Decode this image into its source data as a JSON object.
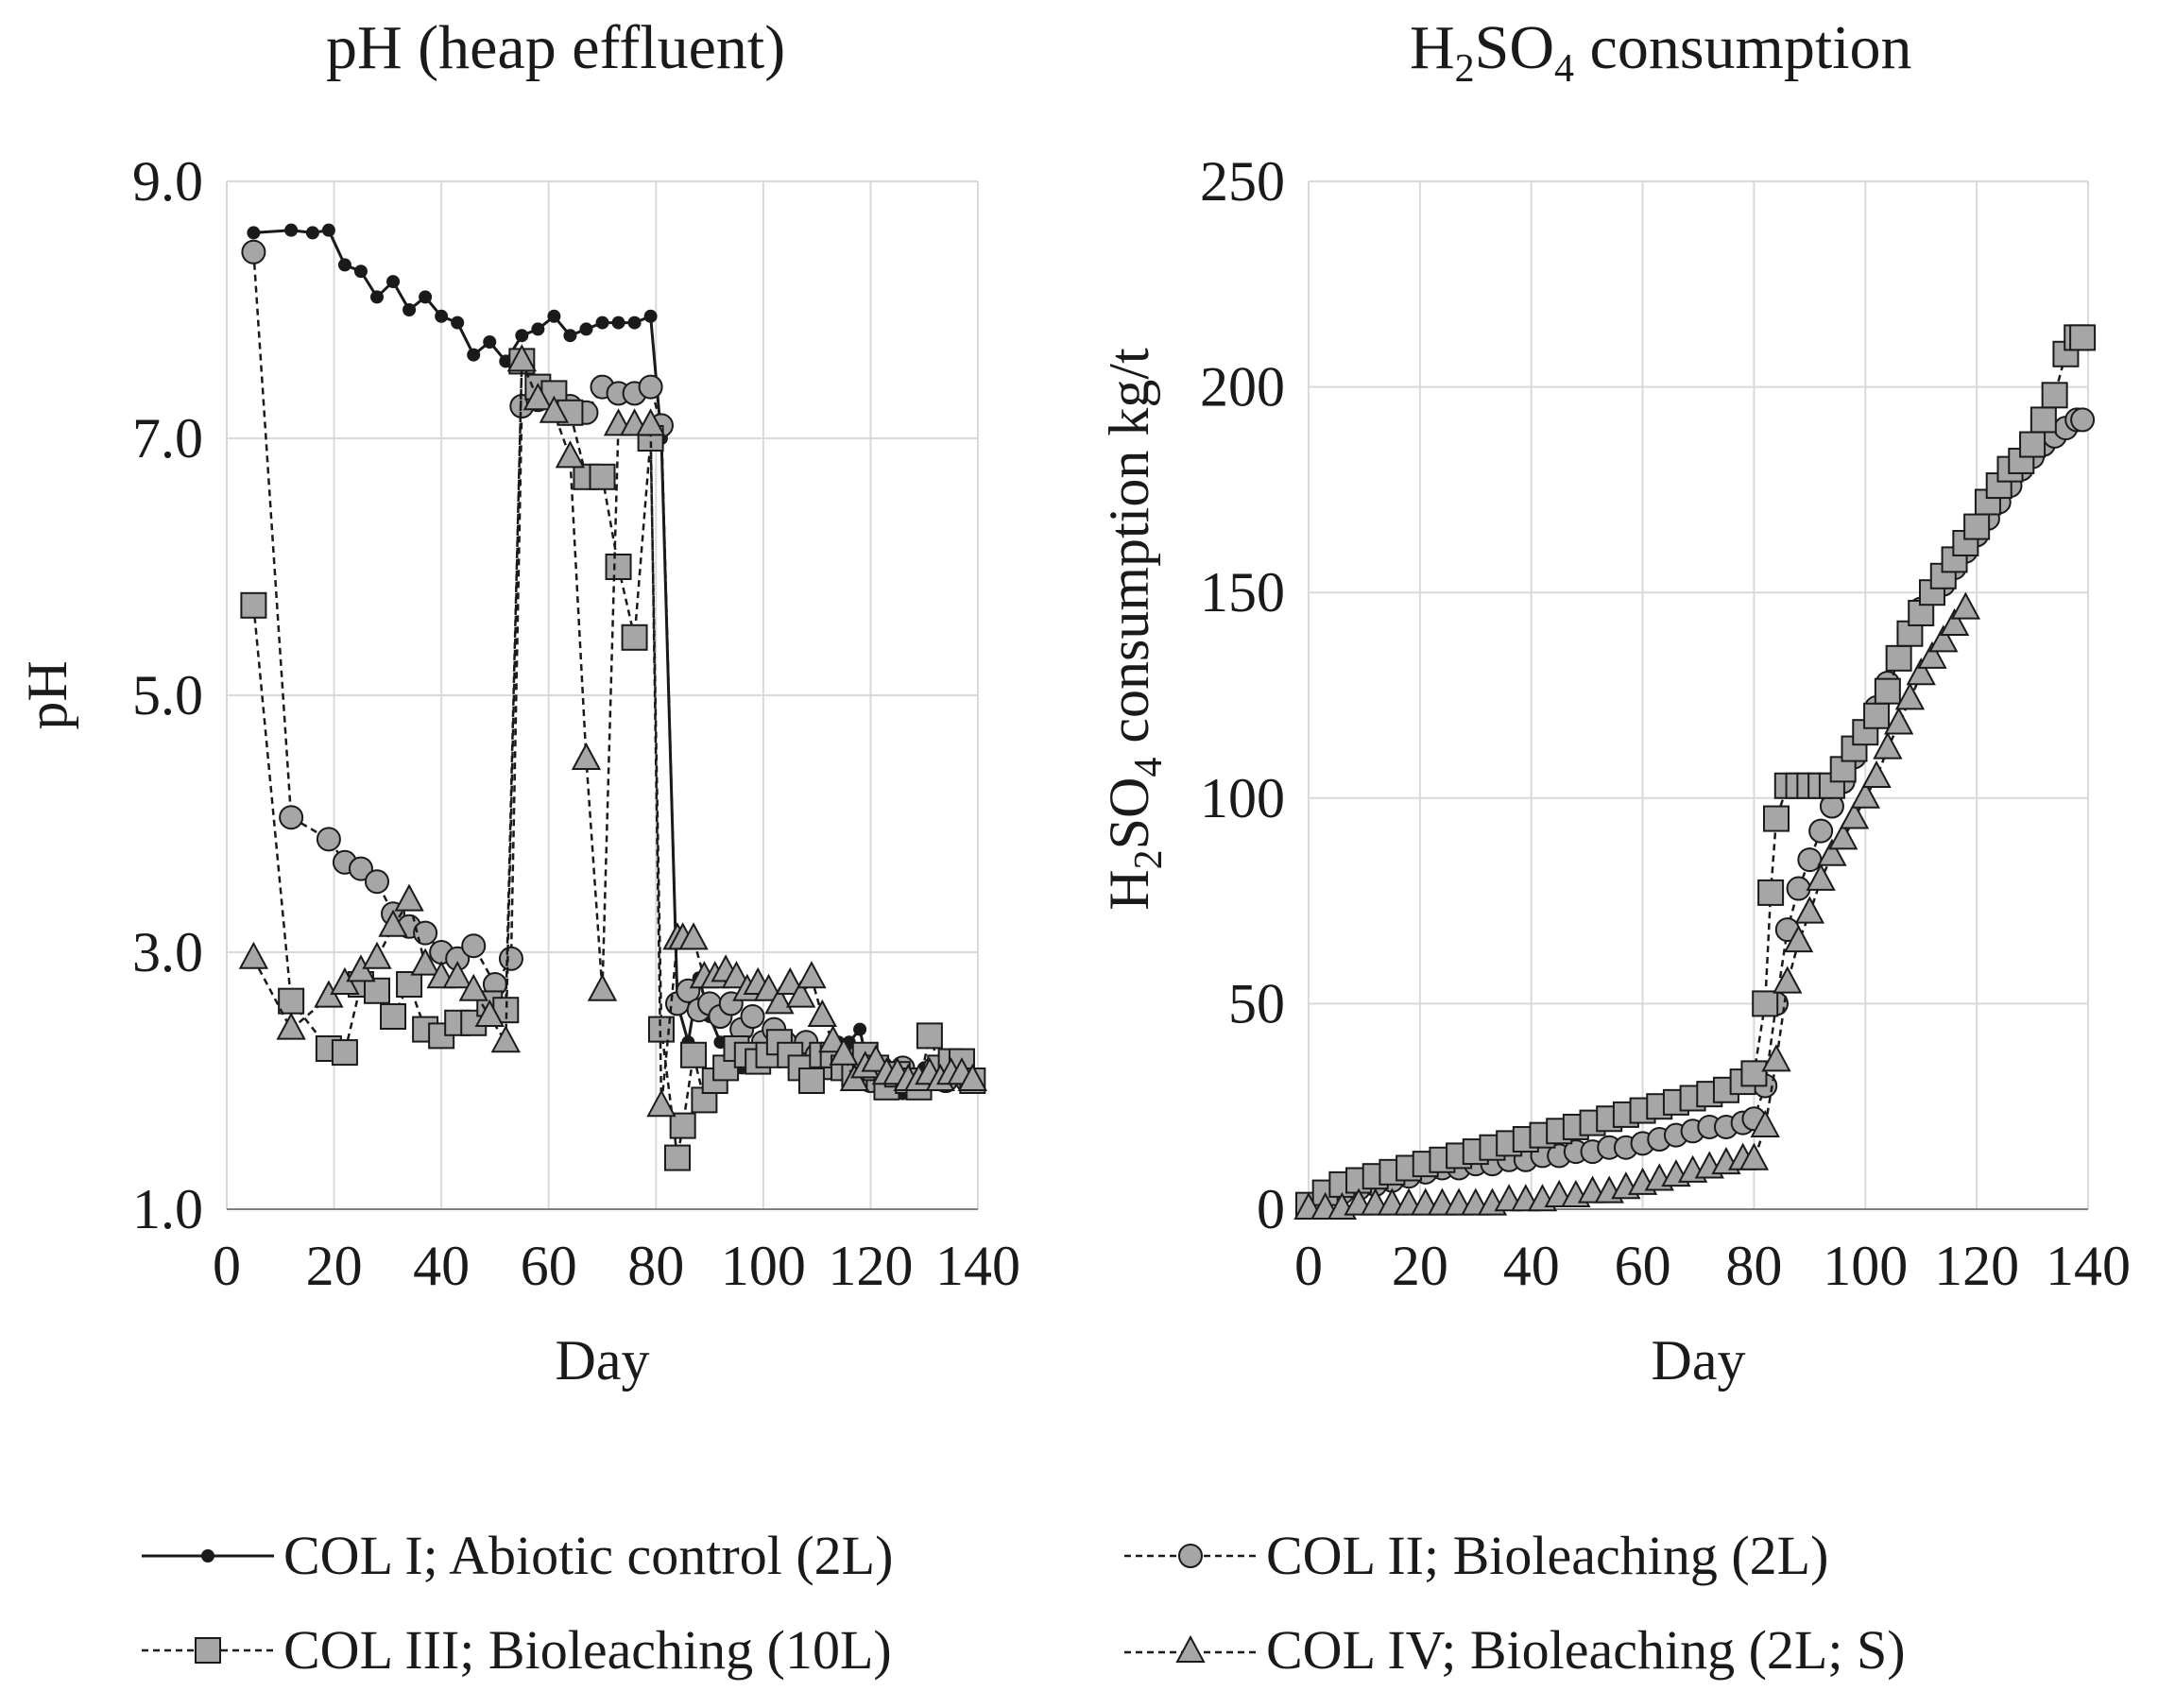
{
  "charts": [
    {
      "id": "ph",
      "type": "line",
      "title": "pH (heap effluent)",
      "xlabel": "Day",
      "ylabel": "pH",
      "xlim": [
        0,
        140
      ],
      "ylim": [
        1.0,
        9.0
      ],
      "xticks": [
        "0",
        "20",
        "40",
        "60",
        "80",
        "100",
        "120",
        "140"
      ],
      "yticks": [
        "1.0",
        "3.0",
        "5.0",
        "7.0",
        "9.0"
      ]
    },
    {
      "id": "acid",
      "type": "line",
      "title_main": "H",
      "title_sub1": "2",
      "title_mid": "SO",
      "title_sub2": "4",
      "title_end": " consumption",
      "xlabel": "Day",
      "ylabel_a": "H",
      "ylabel_sub1": "2",
      "ylabel_b": "SO",
      "ylabel_sub2": "4",
      "ylabel_c": " consumption kg/t",
      "xlim": [
        0,
        140
      ],
      "ylim": [
        0,
        250
      ],
      "xticks": [
        "0",
        "20",
        "40",
        "60",
        "80",
        "100",
        "120",
        "140"
      ],
      "yticks": [
        "0",
        "50",
        "100",
        "150",
        "200",
        "250"
      ]
    }
  ],
  "legend": [
    {
      "label": "COL I; Abiotic control (2L)",
      "marker": "dot",
      "dash": "solid"
    },
    {
      "label": "COL II; Bioleaching (2L)",
      "marker": "circle",
      "dash": "dashed"
    },
    {
      "label": "COL III; Bioleaching (10L)",
      "marker": "square",
      "dash": "dashed"
    },
    {
      "label": "COL IV; Bioleaching (2L; S)",
      "marker": "triangle",
      "dash": "dashed"
    }
  ],
  "colors": {
    "line": "#1a1a1a",
    "marker_fill": "#a6a6a6",
    "grid": "#d9d9d9"
  },
  "chart_data": [
    {
      "type": "line",
      "title": "pH (heap effluent)",
      "xlabel": "Day",
      "ylabel": "pH",
      "xlim": [
        0,
        140
      ],
      "ylim": [
        1.0,
        9.0
      ],
      "series": [
        {
          "name": "COL I; Abiotic control (2L)",
          "x": [
            5,
            12,
            16,
            19,
            22,
            25,
            28,
            31,
            34,
            37,
            40,
            43,
            46,
            49,
            52,
            55,
            58,
            61,
            64,
            67,
            70,
            73,
            76,
            79,
            81,
            84,
            86,
            88,
            90,
            92,
            94,
            96,
            98,
            100,
            102,
            104,
            106,
            108,
            110,
            112,
            114,
            116,
            118,
            120,
            122,
            124,
            126,
            128,
            130,
            132,
            134,
            136,
            138
          ],
          "y": [
            8.6,
            8.62,
            8.6,
            8.62,
            8.35,
            8.3,
            8.1,
            8.22,
            8.0,
            8.1,
            7.95,
            7.9,
            7.65,
            7.75,
            7.6,
            7.8,
            7.85,
            7.95,
            7.8,
            7.85,
            7.9,
            7.9,
            7.9,
            7.95,
            7.0,
            2.6,
            2.3,
            2.8,
            2.5,
            2.3,
            2.2,
            2.1,
            2.2,
            2.1,
            2.3,
            2.2,
            2.3,
            2.1,
            2.0,
            2.2,
            2.3,
            2.3,
            2.4,
            2.0,
            2.1,
            2.0,
            1.9,
            2.0,
            2.1,
            2.0,
            2.1,
            2.2,
            2.0
          ]
        },
        {
          "name": "COL II; Bioleaching (2L)",
          "x": [
            5,
            12,
            19,
            22,
            25,
            28,
            31,
            34,
            37,
            40,
            43,
            46,
            50,
            53,
            55,
            58,
            61,
            64,
            67,
            70,
            73,
            76,
            79,
            81,
            84,
            86,
            88,
            90,
            92,
            94,
            96,
            98,
            100,
            102,
            104,
            106,
            108,
            110,
            112,
            114,
            116,
            118,
            120,
            122,
            124,
            126,
            128,
            130,
            132,
            134,
            136,
            138
          ],
          "y": [
            8.45,
            4.05,
            3.88,
            3.7,
            3.65,
            3.55,
            3.3,
            3.2,
            3.15,
            3.0,
            2.95,
            3.05,
            2.75,
            2.95,
            7.25,
            7.3,
            7.35,
            7.25,
            7.2,
            7.4,
            7.35,
            7.35,
            7.4,
            7.1,
            2.6,
            2.7,
            2.55,
            2.6,
            2.5,
            2.6,
            2.4,
            2.5,
            2.3,
            2.4,
            2.3,
            2.2,
            2.3,
            2.2,
            2.1,
            2.2,
            2.1,
            2.2,
            2.0,
            2.1,
            2.0,
            2.1,
            2.0,
            2.0,
            2.1,
            2.0,
            2.1,
            2.0
          ]
        },
        {
          "name": "COL III; Bioleaching (10L)",
          "x": [
            5,
            12,
            19,
            22,
            25,
            28,
            31,
            34,
            37,
            40,
            43,
            46,
            49,
            52,
            55,
            58,
            61,
            64,
            67,
            70,
            73,
            76,
            79,
            81,
            84,
            85,
            87,
            89,
            91,
            93,
            95,
            97,
            99,
            101,
            103,
            105,
            107,
            109,
            111,
            113,
            115,
            117,
            119,
            121,
            123,
            125,
            127,
            129,
            131,
            133,
            135,
            137,
            139
          ],
          "y": [
            5.7,
            2.62,
            2.25,
            2.22,
            2.75,
            2.7,
            2.5,
            2.75,
            2.4,
            2.35,
            2.45,
            2.45,
            2.6,
            2.55,
            7.6,
            7.4,
            7.35,
            7.2,
            6.7,
            6.7,
            6.0,
            5.45,
            7.0,
            2.4,
            1.4,
            1.65,
            2.2,
            1.85,
            2.0,
            2.1,
            2.25,
            2.2,
            2.15,
            2.2,
            2.3,
            2.2,
            2.1,
            2.0,
            2.2,
            2.2,
            2.1,
            2.05,
            2.2,
            2.1,
            1.95,
            2.05,
            2.0,
            1.95,
            2.35,
            2.1,
            2.15,
            2.15,
            2.0
          ]
        },
        {
          "name": "COL IV; Bioleaching (2L; S)",
          "x": [
            5,
            12,
            19,
            22,
            25,
            28,
            31,
            34,
            37,
            40,
            43,
            46,
            49,
            52,
            55,
            58,
            61,
            64,
            67,
            70,
            73,
            76,
            79,
            81,
            84,
            85,
            87,
            89,
            91,
            93,
            95,
            97,
            99,
            101,
            103,
            105,
            107,
            109,
            111,
            113,
            115,
            117,
            119,
            121,
            123,
            125,
            127,
            129,
            131,
            133,
            135,
            137,
            139
          ],
          "y": [
            2.95,
            2.4,
            2.65,
            2.75,
            2.85,
            2.95,
            3.2,
            3.4,
            2.9,
            2.8,
            2.8,
            2.7,
            2.5,
            2.3,
            7.6,
            7.3,
            7.2,
            6.85,
            4.5,
            2.7,
            7.1,
            7.1,
            7.1,
            1.8,
            3.1,
            3.1,
            3.1,
            2.8,
            2.8,
            2.85,
            2.8,
            2.7,
            2.75,
            2.7,
            2.6,
            2.75,
            2.65,
            2.8,
            2.5,
            2.3,
            2.2,
            2.0,
            2.1,
            2.15,
            2.05,
            2.05,
            2.0,
            2.0,
            2.05,
            2.0,
            2.05,
            2.05,
            2.0
          ]
        }
      ]
    },
    {
      "type": "line",
      "title": "H2SO4 consumption",
      "xlabel": "Day",
      "ylabel": "H2SO4 consumption kg/t",
      "xlim": [
        0,
        140
      ],
      "ylim": [
        0,
        250
      ],
      "series": [
        {
          "name": "COL II; Bioleaching (2L)",
          "x": [
            0,
            3,
            6,
            9,
            12,
            15,
            18,
            21,
            24,
            27,
            30,
            33,
            36,
            39,
            42,
            45,
            48,
            51,
            54,
            57,
            60,
            63,
            66,
            69,
            72,
            75,
            78,
            80,
            82,
            84,
            86,
            88,
            90,
            92,
            94,
            96,
            98,
            100,
            102,
            104,
            106,
            108,
            110,
            112,
            114,
            116,
            118,
            120,
            122,
            124,
            126,
            128,
            130,
            132,
            134,
            136,
            138,
            139
          ],
          "y": [
            1,
            3,
            4,
            5,
            6,
            7,
            8,
            9,
            10,
            10,
            11,
            11,
            12,
            12,
            13,
            13,
            14,
            14,
            15,
            15,
            16,
            17,
            18,
            19,
            20,
            20,
            21,
            22,
            30,
            50,
            68,
            78,
            85,
            92,
            98,
            104,
            110,
            116,
            122,
            128,
            134,
            140,
            146,
            150,
            152,
            156,
            160,
            164,
            168,
            172,
            176,
            180,
            183,
            186,
            188,
            190,
            192,
            192
          ]
        },
        {
          "name": "COL III; Bioleaching (10L)",
          "x": [
            0,
            3,
            6,
            9,
            12,
            15,
            18,
            21,
            24,
            27,
            30,
            33,
            36,
            39,
            42,
            45,
            48,
            51,
            54,
            57,
            60,
            63,
            66,
            69,
            72,
            75,
            78,
            80,
            82,
            83,
            84,
            86,
            88,
            90,
            92,
            94,
            96,
            98,
            100,
            102,
            104,
            106,
            108,
            110,
            112,
            114,
            116,
            118,
            120,
            122,
            124,
            126,
            128,
            130,
            132,
            134,
            136,
            138,
            139
          ],
          "y": [
            1,
            4,
            6,
            7,
            8,
            9,
            10,
            11,
            12,
            13,
            14,
            15,
            16,
            17,
            18,
            19,
            20,
            21,
            22,
            23,
            24,
            25,
            26,
            27,
            28,
            29,
            31,
            33,
            50,
            77,
            95,
            103,
            103,
            103,
            103,
            103,
            107,
            112,
            116,
            120,
            126,
            134,
            140,
            145,
            150,
            154,
            158,
            162,
            166,
            172,
            176,
            180,
            182,
            186,
            192,
            198,
            208,
            212,
            212
          ]
        },
        {
          "name": "COL IV; Bioleaching (2L; S)",
          "x": [
            0,
            3,
            6,
            9,
            12,
            15,
            18,
            21,
            24,
            27,
            30,
            33,
            36,
            39,
            42,
            45,
            48,
            51,
            54,
            57,
            60,
            63,
            66,
            69,
            72,
            75,
            78,
            80,
            82,
            84,
            86,
            88,
            90,
            92,
            94,
            96,
            98,
            100,
            102,
            104,
            106,
            108,
            110,
            112,
            114,
            116,
            118
          ],
          "y": [
            0,
            0,
            0,
            1,
            1,
            1,
            1,
            1,
            1,
            1,
            1,
            1,
            2,
            2,
            2,
            3,
            3,
            4,
            4,
            5,
            6,
            7,
            8,
            9,
            10,
            11,
            12,
            12,
            20,
            36,
            55,
            65,
            72,
            80,
            86,
            90,
            95,
            100,
            105,
            112,
            118,
            124,
            130,
            134,
            138,
            142,
            146
          ]
        }
      ]
    }
  ]
}
